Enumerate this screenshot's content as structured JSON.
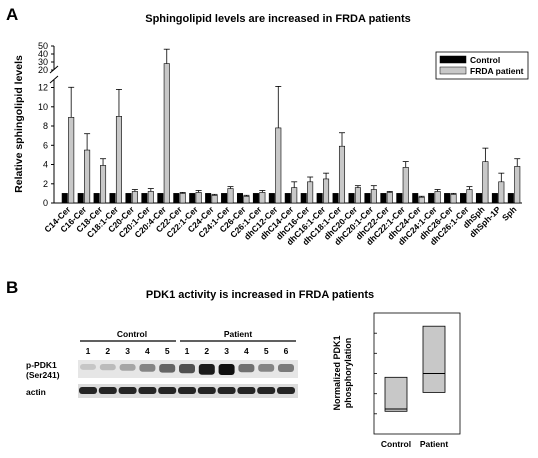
{
  "panel_a": {
    "letter": "A",
    "title": "Sphingolipid levels are increased in FRDA patients",
    "ylabel": "Relative sphingolipid levels",
    "yticks_low": [
      "0",
      "2",
      "4",
      "6",
      "8",
      "10",
      "12"
    ],
    "yticks_high": [
      "20",
      "30",
      "40",
      "50"
    ],
    "legend": {
      "control": "Control",
      "patient": "FRDA patient"
    },
    "colors": {
      "control": "#000000",
      "patient": "#c8c8c8"
    }
  },
  "panel_b": {
    "letter": "B",
    "title": "PDK1 activity is increased in FRDA patients",
    "blot": {
      "group_control": "Control",
      "group_patient": "Patient",
      "lanes_control": [
        "1",
        "2",
        "3",
        "4",
        "5"
      ],
      "lanes_patient": [
        "1",
        "2",
        "3",
        "4",
        "5",
        "6"
      ],
      "row1_label_line1": "p-PDK1",
      "row1_label_line2": "(Ser241)",
      "row2_label": "actin",
      "pdk1_intensity": [
        0.15,
        0.2,
        0.3,
        0.45,
        0.6,
        0.7,
        0.95,
        1.0,
        0.55,
        0.45,
        0.5
      ],
      "actin_intensity": [
        0.9,
        0.9,
        0.9,
        0.9,
        0.9,
        0.9,
        0.9,
        0.9,
        0.9,
        0.9,
        0.9
      ]
    },
    "box_ylabel_line1": "Normalized PDK1",
    "box_ylabel_line2": "phosphorylation"
  },
  "chart_data": [
    {
      "type": "bar",
      "title": "Sphingolipid levels are increased in FRDA patients",
      "xlabel": "",
      "ylabel": "Relative sphingolipid levels",
      "y_axis": "broken",
      "ylim_low": [
        0,
        12
      ],
      "ylim_high": [
        20,
        50
      ],
      "legend_position": "top-right",
      "categories": [
        "C14-Cer",
        "C16-Cer",
        "C18-Cer",
        "C18:1-Cer",
        "C20-Cer",
        "C20:1-Cer",
        "C20:4-Cer",
        "C22-Cer",
        "C22:1-Cer",
        "C24-Cer",
        "C24:1-Cer",
        "C26-Cer",
        "C26:1-Cer",
        "dhC12-Cer",
        "dhC14-Cer",
        "dhC16-Cer",
        "dhC16:1-Cer",
        "dhC18:1-Cer",
        "dhC20-Cer",
        "dhC20:1-Cer",
        "dhC22-Cer",
        "dhC22:1-Cer",
        "dhC24-Cer",
        "dhC24:1-Cer",
        "dhC26-Cer",
        "dhC26:1-Cer",
        "dhSph",
        "dhSph-1P",
        "Sph"
      ],
      "series": [
        {
          "name": "Control",
          "values": [
            1,
            1,
            1,
            1,
            1,
            1,
            1,
            1,
            1,
            1,
            1,
            1,
            1,
            1,
            1,
            1,
            1,
            1,
            1,
            1,
            1,
            1,
            1,
            1,
            1,
            1,
            1,
            1,
            1
          ],
          "errors": [
            0,
            0,
            0,
            0,
            0,
            0,
            0,
            0,
            0,
            0,
            0,
            0,
            0,
            0,
            0,
            0,
            0,
            0,
            0,
            0,
            0,
            0,
            0,
            0,
            0,
            0,
            0,
            0,
            0
          ]
        },
        {
          "name": "FRDA patient",
          "values": [
            8.9,
            5.5,
            3.9,
            9.0,
            1.2,
            1.2,
            28,
            1.0,
            1.1,
            0.8,
            1.5,
            0.7,
            1.1,
            7.8,
            1.6,
            2.2,
            2.5,
            5.9,
            1.6,
            1.4,
            1.1,
            3.7,
            0.6,
            1.2,
            0.9,
            1.4,
            4.3,
            2.2,
            3.8
          ],
          "errors": [
            3.2,
            1.7,
            0.7,
            2.8,
            0.2,
            0.3,
            18,
            0.1,
            0.2,
            0.1,
            0.2,
            0.1,
            0.2,
            4.7,
            0.6,
            0.5,
            0.6,
            1.4,
            0.2,
            0.4,
            0.1,
            0.6,
            0.1,
            0.2,
            0.1,
            0.3,
            1.4,
            0.9,
            0.8
          ]
        }
      ]
    },
    {
      "type": "box",
      "title": "",
      "xlabel": "",
      "ylabel": "Normalized PDK1 phosphorylation",
      "categories": [
        "Control",
        "Patient"
      ],
      "boxes": [
        {
          "name": "Control",
          "q1": 0.6,
          "median": 0.66,
          "q3": 1.5
        },
        {
          "name": "Patient",
          "q1": 1.1,
          "median": 1.6,
          "q3": 2.85
        }
      ],
      "ylim": [
        0,
        3.2
      ],
      "tick_labels": []
    }
  ]
}
